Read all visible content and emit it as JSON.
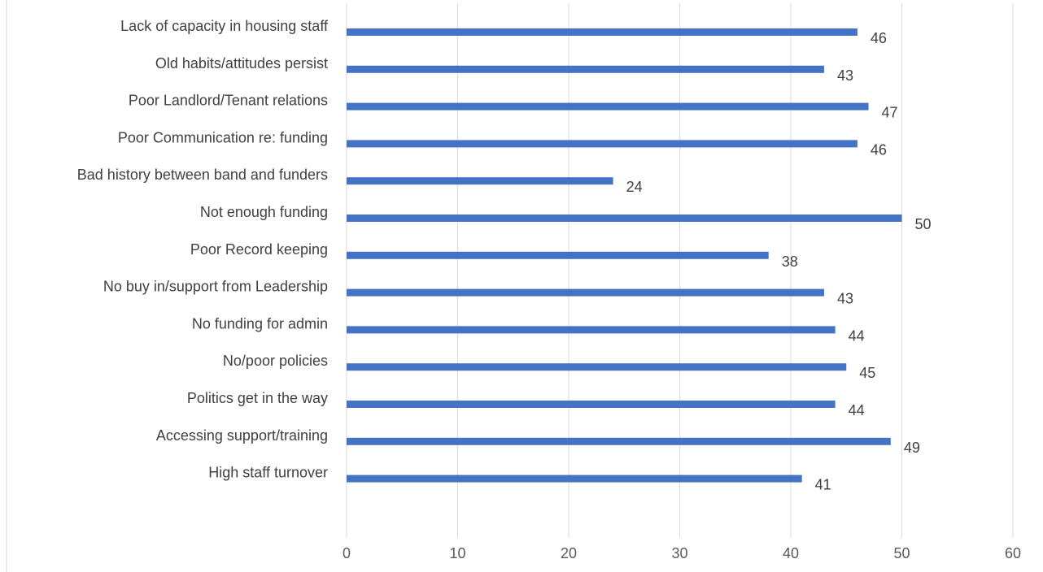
{
  "chart_data": {
    "type": "bar",
    "orientation": "horizontal",
    "categories": [
      "Lack of capacity in housing staff",
      "Old habits/attitudes persist",
      "Poor Landlord/Tenant relations",
      "Poor Communication re: funding",
      "Bad history between band and funders",
      "Not enough funding",
      "Poor Record keeping",
      "No buy in/support from Leadership",
      "No funding for admin",
      "No/poor policies",
      "Politics get in the way",
      "Accessing support/training",
      "High staff turnover"
    ],
    "values": [
      46,
      43,
      47,
      46,
      24,
      50,
      38,
      43,
      44,
      45,
      44,
      49,
      41
    ],
    "value_labels": [
      "46",
      "43",
      "47",
      "46",
      "24",
      "50",
      "38",
      "43",
      "44",
      "45",
      "44",
      "49",
      "41"
    ],
    "xlim": [
      0,
      60
    ],
    "xticks": [
      "0",
      "10",
      "20",
      "30",
      "40",
      "50",
      "60"
    ],
    "grid": "vertical",
    "legend": "none",
    "bar_color": "#4472c4",
    "title": "",
    "xlabel": "",
    "ylabel": ""
  }
}
